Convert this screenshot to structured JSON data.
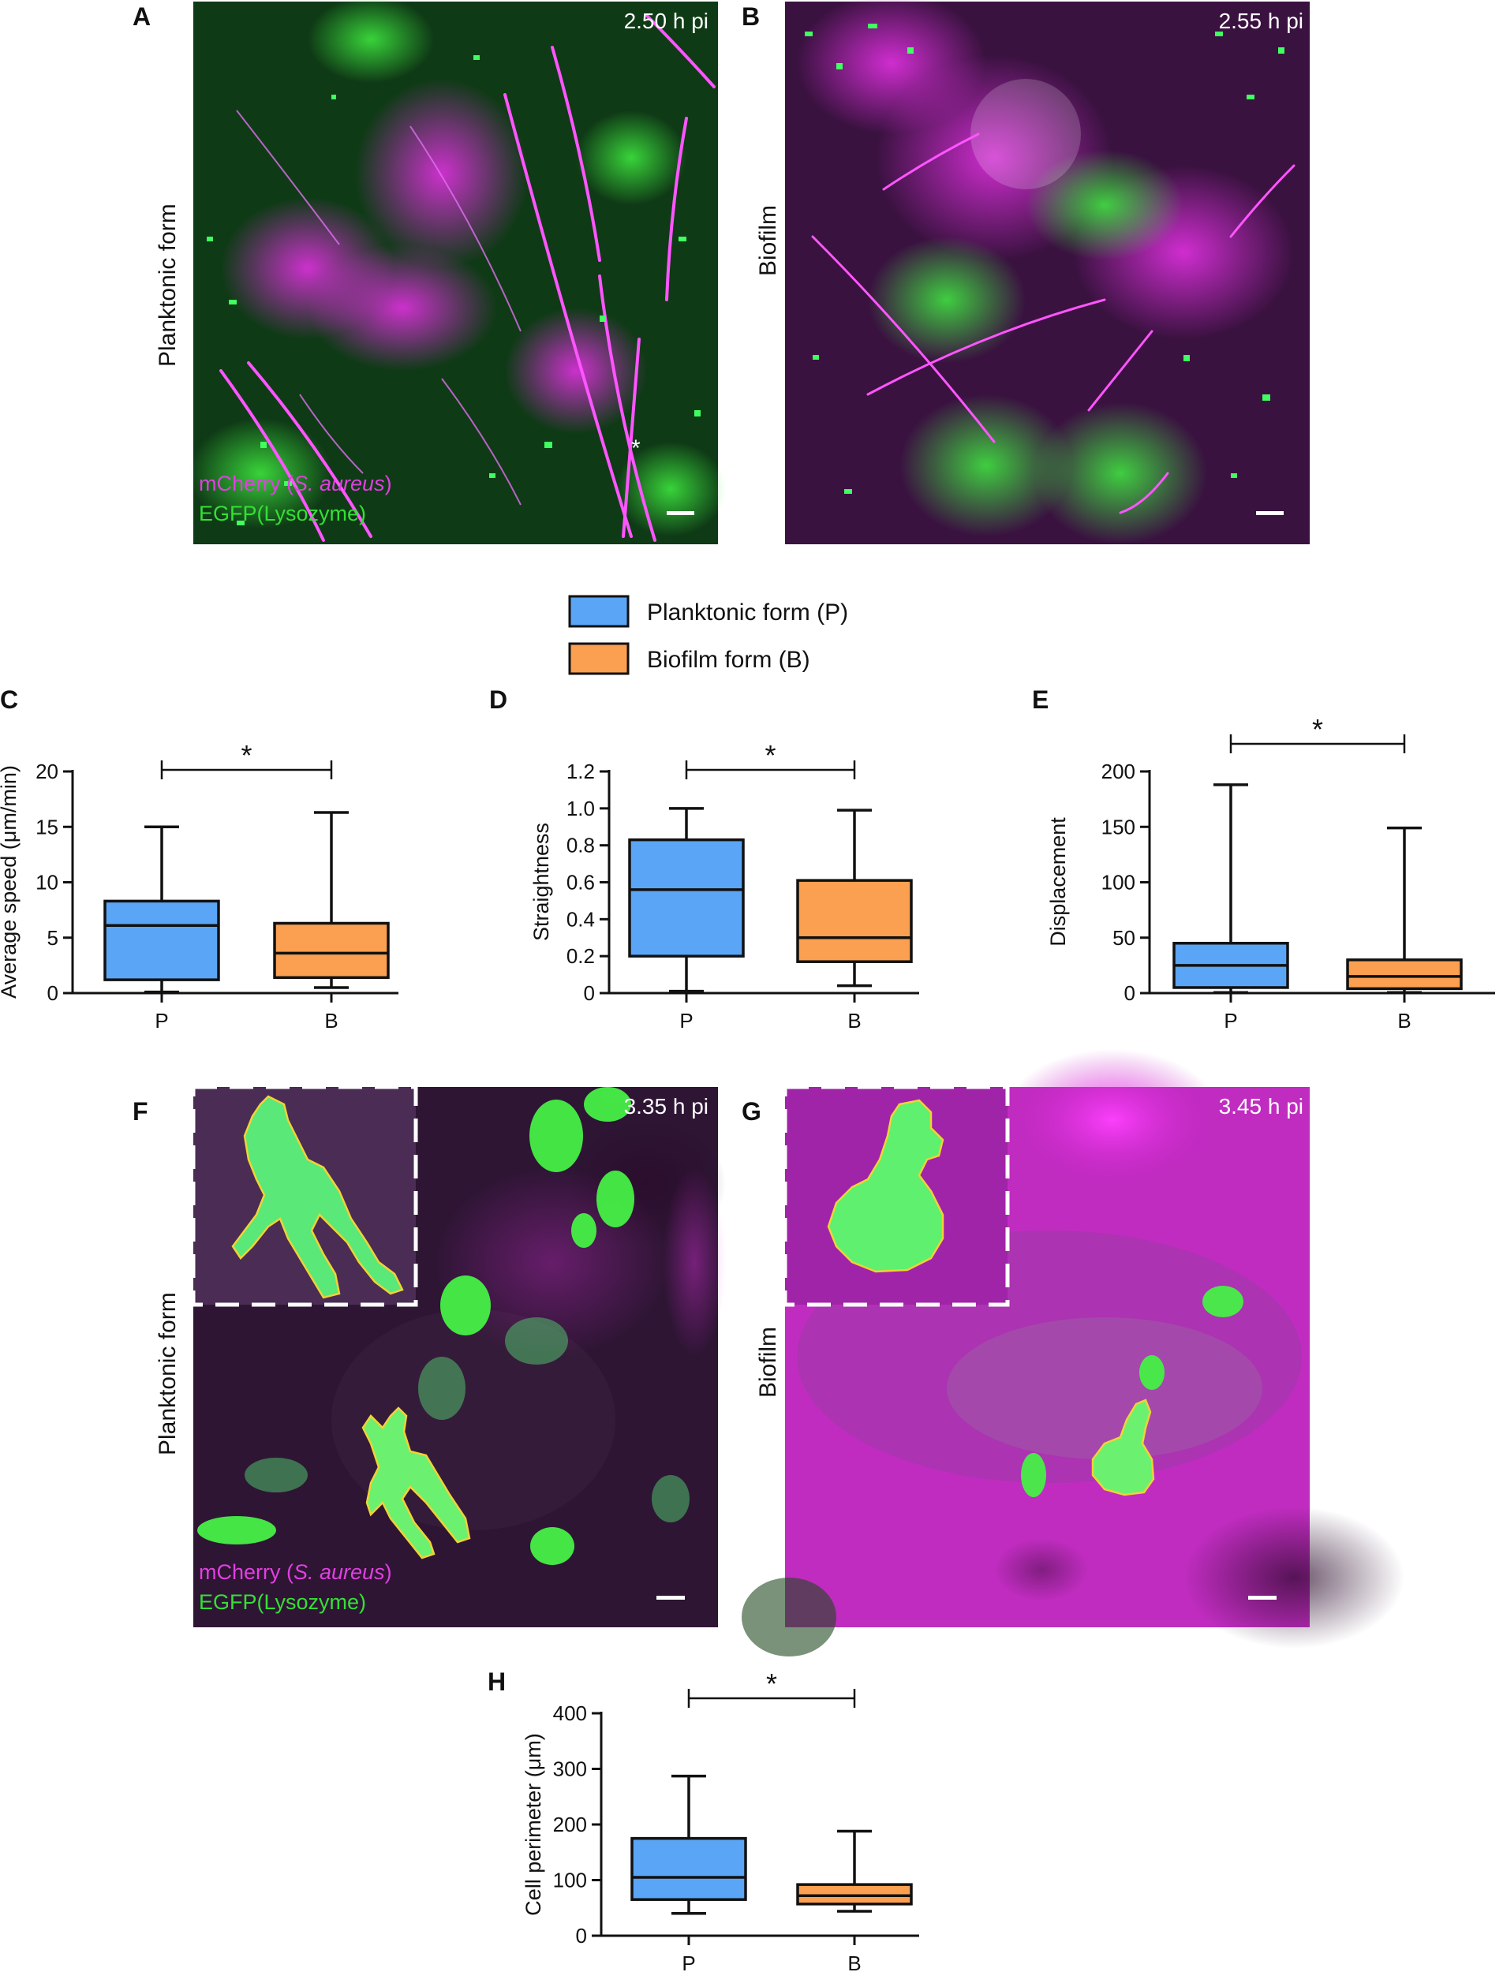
{
  "panels": {
    "A": {
      "letter": "A",
      "row_label": "Planktonic form",
      "timestamp": "2.50 h pi",
      "channel_red_prefix": "mCherry (",
      "channel_red_italic": "S. aureus",
      "channel_red_suffix": ")",
      "channel_green": "EGFP(Lysozyme)",
      "marker": "*"
    },
    "B": {
      "letter": "B",
      "row_label": "Biofilm",
      "timestamp": "2.55 h pi"
    },
    "F": {
      "letter": "F",
      "row_label": "Planktonic form",
      "timestamp": "3.35 h pi",
      "channel_red_prefix": "mCherry (",
      "channel_red_italic": "S. aureus",
      "channel_red_suffix": ")",
      "channel_green": "EGFP(Lysozyme)"
    },
    "G": {
      "letter": "G",
      "row_label": "Biofilm",
      "timestamp": "3.45 h pi"
    }
  },
  "legend": {
    "items": [
      {
        "label": "Planktonic form (P)",
        "color": "#5aa5f5"
      },
      {
        "label": "Biofilm form (B)",
        "color": "#fba050"
      }
    ]
  },
  "colors": {
    "planktonic": "#5aa5f5",
    "biofilm": "#fba050",
    "magenta": "#d020d0",
    "green": "#30e030"
  },
  "chart_data": [
    {
      "letter": "C",
      "type": "box",
      "categories": [
        "P",
        "B"
      ],
      "ylabel": "Average speed (μm/min)",
      "ylim": [
        0,
        20
      ],
      "yticks": [
        0,
        5,
        10,
        15,
        20
      ],
      "significance": "*",
      "series": [
        {
          "name": "Planktonic form (P)",
          "min": 0.1,
          "q1": 1.2,
          "median": 6.1,
          "q3": 8.3,
          "max": 15.0
        },
        {
          "name": "Biofilm form (B)",
          "min": 0.5,
          "q1": 1.4,
          "median": 3.6,
          "q3": 6.3,
          "max": 16.3
        }
      ]
    },
    {
      "letter": "D",
      "type": "box",
      "categories": [
        "P",
        "B"
      ],
      "ylabel": "Straightness",
      "ylim": [
        0,
        1.2
      ],
      "yticks": [
        "0",
        "0.2",
        "0.4",
        "0.6",
        "0.8",
        "1.0",
        "1.2"
      ],
      "significance": "*",
      "series": [
        {
          "name": "Planktonic form (P)",
          "min": 0.01,
          "q1": 0.2,
          "median": 0.56,
          "q3": 0.83,
          "max": 1.0
        },
        {
          "name": "Biofilm form (B)",
          "min": 0.04,
          "q1": 0.17,
          "median": 0.3,
          "q3": 0.61,
          "max": 0.99
        }
      ]
    },
    {
      "letter": "E",
      "type": "box",
      "categories": [
        "P",
        "B"
      ],
      "ylabel": "Displacement",
      "ylim": [
        0,
        200
      ],
      "yticks": [
        0,
        50,
        100,
        150,
        200
      ],
      "significance": "*",
      "series": [
        {
          "name": "Planktonic form (P)",
          "min": 0.5,
          "q1": 5,
          "median": 25,
          "q3": 45,
          "max": 188
        },
        {
          "name": "Biofilm form (B)",
          "min": 0.5,
          "q1": 4,
          "median": 15,
          "q3": 30,
          "max": 149
        }
      ]
    },
    {
      "letter": "H",
      "type": "box",
      "categories": [
        "P",
        "B"
      ],
      "ylabel": "Cell perimeter (μm)",
      "ylim": [
        0,
        400
      ],
      "yticks": [
        0,
        100,
        200,
        300,
        400
      ],
      "significance": "*",
      "series": [
        {
          "name": "Planktonic form (P)",
          "min": 40,
          "q1": 65,
          "median": 105,
          "q3": 175,
          "max": 287
        },
        {
          "name": "Biofilm form (B)",
          "min": 44,
          "q1": 57,
          "median": 72,
          "q3": 92,
          "max": 188
        }
      ]
    }
  ]
}
